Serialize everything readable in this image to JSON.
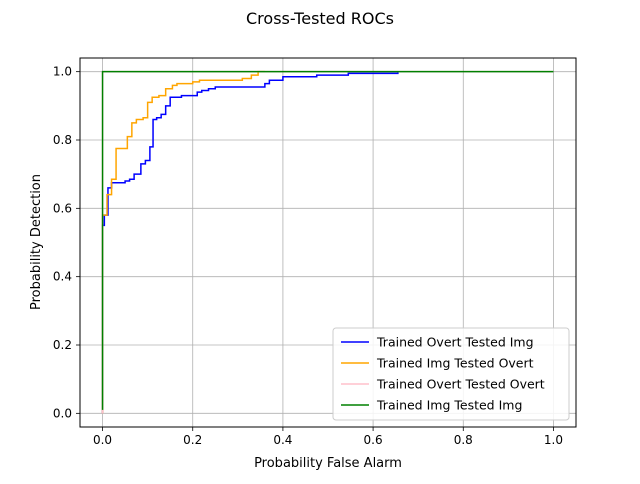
{
  "chart_data": {
    "type": "line",
    "title": "Cross-Tested ROCs",
    "xlabel": "Probability False Alarm",
    "ylabel": "Probability Detection",
    "xlim": [
      -0.05,
      1.05
    ],
    "ylim": [
      -0.04,
      1.04
    ],
    "xticks": [
      0.0,
      0.2,
      0.4,
      0.6,
      0.8,
      1.0
    ],
    "xtick_labels": [
      "0.0",
      "0.2",
      "0.4",
      "0.6",
      "0.8",
      "1.0"
    ],
    "yticks": [
      0.0,
      0.2,
      0.4,
      0.6,
      0.8,
      1.0
    ],
    "ytick_labels": [
      "0.0",
      "0.2",
      "0.4",
      "0.6",
      "0.8",
      "1.0"
    ],
    "grid": true,
    "legend_position": "lower-right",
    "series": [
      {
        "name": "Trained Overt Tested Img",
        "color": "#0000ff",
        "x": [
          0.0,
          0.0,
          0.004,
          0.004,
          0.012,
          0.012,
          0.02,
          0.02,
          0.05,
          0.05,
          0.06,
          0.06,
          0.07,
          0.07,
          0.085,
          0.085,
          0.095,
          0.095,
          0.105,
          0.105,
          0.112,
          0.112,
          0.12,
          0.12,
          0.13,
          0.13,
          0.14,
          0.14,
          0.15,
          0.15,
          0.175,
          0.175,
          0.21,
          0.21,
          0.22,
          0.22,
          0.235,
          0.235,
          0.25,
          0.25,
          0.36,
          0.36,
          0.37,
          0.37,
          0.4,
          0.4,
          0.475,
          0.475,
          0.545,
          0.545,
          0.655,
          0.655
        ],
        "y": [
          0.0,
          0.55,
          0.55,
          0.58,
          0.58,
          0.66,
          0.66,
          0.675,
          0.675,
          0.68,
          0.68,
          0.685,
          0.685,
          0.7,
          0.7,
          0.73,
          0.73,
          0.74,
          0.74,
          0.78,
          0.78,
          0.86,
          0.86,
          0.865,
          0.865,
          0.875,
          0.875,
          0.9,
          0.9,
          0.925,
          0.925,
          0.93,
          0.93,
          0.94,
          0.94,
          0.945,
          0.945,
          0.95,
          0.95,
          0.955,
          0.955,
          0.965,
          0.965,
          0.975,
          0.975,
          0.985,
          0.985,
          0.99,
          0.99,
          0.995,
          0.995,
          1.0
        ]
      },
      {
        "name": "Trained Img Tested Overt",
        "color": "#ffa500",
        "x": [
          0.0,
          0.0,
          0.01,
          0.01,
          0.02,
          0.02,
          0.03,
          0.03,
          0.055,
          0.055,
          0.065,
          0.065,
          0.075,
          0.075,
          0.09,
          0.09,
          0.1,
          0.1,
          0.11,
          0.11,
          0.125,
          0.125,
          0.14,
          0.14,
          0.155,
          0.155,
          0.165,
          0.165,
          0.2,
          0.2,
          0.215,
          0.215,
          0.31,
          0.31,
          0.33,
          0.33,
          0.345,
          0.345,
          0.36
        ],
        "y": [
          0.0,
          0.58,
          0.58,
          0.64,
          0.64,
          0.685,
          0.685,
          0.775,
          0.775,
          0.81,
          0.81,
          0.85,
          0.85,
          0.86,
          0.86,
          0.865,
          0.865,
          0.91,
          0.91,
          0.925,
          0.925,
          0.93,
          0.93,
          0.95,
          0.95,
          0.96,
          0.96,
          0.965,
          0.965,
          0.97,
          0.97,
          0.975,
          0.975,
          0.98,
          0.98,
          0.99,
          0.99,
          1.0,
          1.0
        ]
      },
      {
        "name": "Trained Overt Tested Overt",
        "color": "#ffc0cb",
        "x": [
          0.0,
          0.0,
          1.0
        ],
        "y": [
          0.0,
          1.0,
          1.0
        ]
      },
      {
        "name": "Trained Img Tested Img",
        "color": "#008000",
        "x": [
          0.0,
          0.0,
          1.0
        ],
        "y": [
          0.01,
          1.0,
          1.0
        ]
      }
    ]
  }
}
